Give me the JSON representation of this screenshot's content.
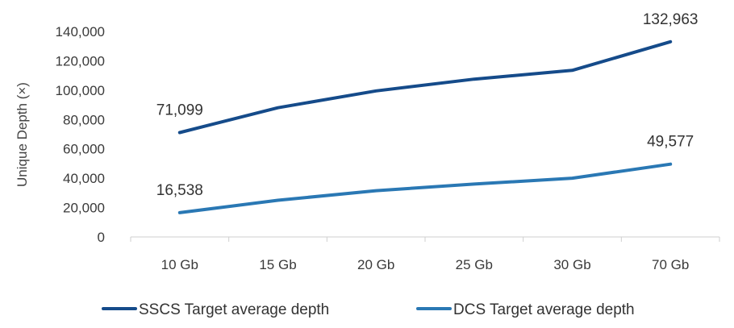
{
  "chart_data": {
    "type": "line",
    "title": "",
    "xlabel": "",
    "ylabel": "Unique Depth (×)",
    "categories": [
      "10 Gb",
      "15 Gb",
      "20 Gb",
      "25 Gb",
      "30 Gb",
      "70 Gb"
    ],
    "ylim": [
      0,
      140000
    ],
    "yticks": [
      "0",
      "20,000",
      "40,000",
      "60,000",
      "80,000",
      "100,000",
      "120,000",
      "140,000"
    ],
    "grid": false,
    "legend_position": "bottom",
    "series": [
      {
        "name": "SSCS Target average depth",
        "color": "#154b8a",
        "values": [
          71099,
          88000,
          99500,
          107500,
          113500,
          132963
        ],
        "labels": [
          {
            "index": 0,
            "text": "71,099"
          },
          {
            "index": 5,
            "text": "132,963"
          }
        ]
      },
      {
        "name": "DCS Target average depth",
        "color": "#2a78b4",
        "values": [
          16538,
          25000,
          31500,
          36000,
          40000,
          49577
        ],
        "labels": [
          {
            "index": 0,
            "text": "16,538"
          },
          {
            "index": 5,
            "text": "49,577"
          }
        ]
      }
    ]
  }
}
